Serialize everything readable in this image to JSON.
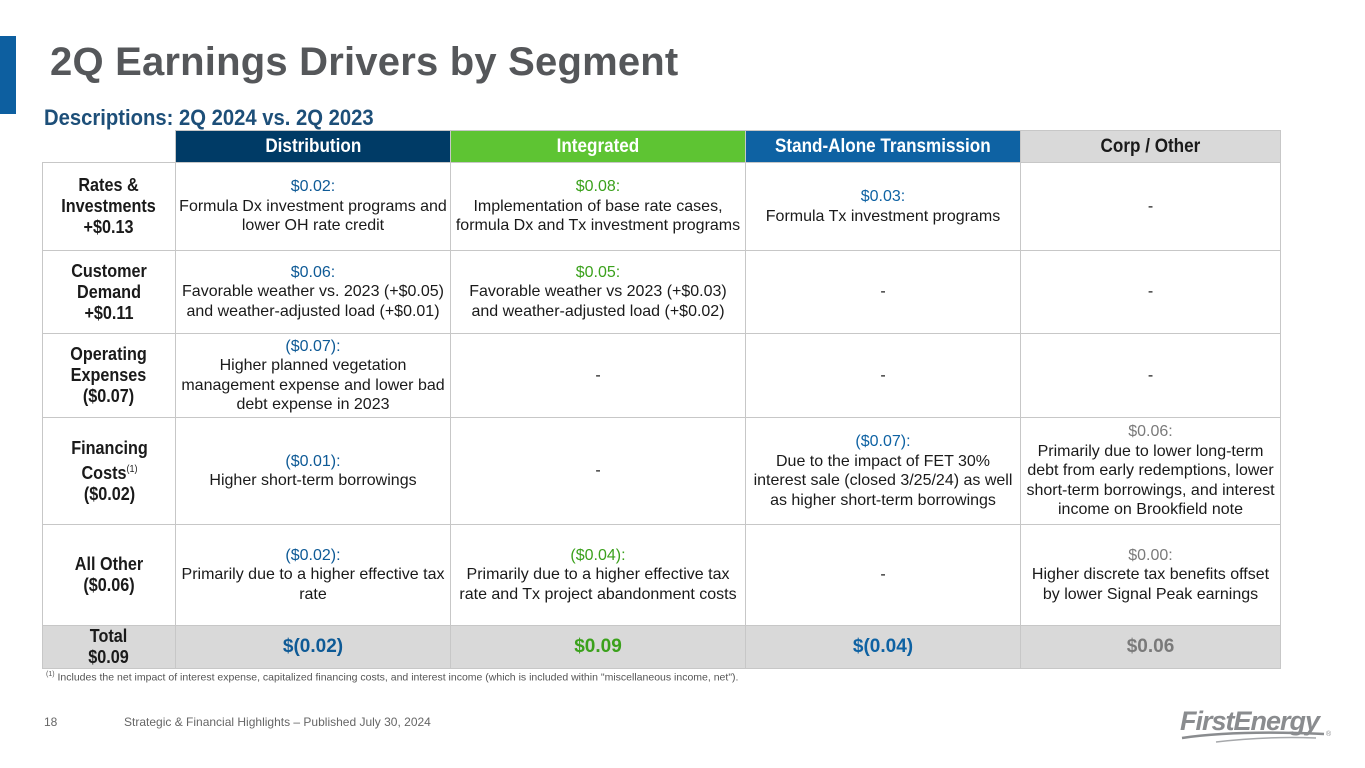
{
  "slide": {
    "title": "2Q Earnings Drivers by Segment",
    "subtitle": "Descriptions: 2Q 2024 vs. 2Q 2023",
    "page_number": "18",
    "footer": "Strategic & Financial Highlights – Published July 30, 2024",
    "footnote_marker": "(1)",
    "footnote": "Includes the net impact of interest expense, capitalized financing costs, and interest income (which is included within \"miscellaneous income, net\").",
    "logo_text": "FirstEnergy",
    "logo_mark": "®"
  },
  "colors": {
    "distribution": "#003b66",
    "integrated": "#5ec433",
    "transmission": "#0e62a3",
    "corp": "#d9d9d9",
    "title_gray": "#55575a",
    "subtitle_blue": "#1d4f79"
  },
  "table": {
    "headers": [
      "Distribution",
      "Integrated",
      "Stand-Alone Transmission",
      "Corp / Other"
    ],
    "rows": [
      {
        "label_lines": [
          "Rates &",
          "Investments",
          "+$0.13"
        ],
        "cells": [
          {
            "amount": "$0.02:",
            "text": "Formula Dx investment programs and lower OH rate credit"
          },
          {
            "amount": "$0.08:",
            "text": "Implementation of base rate cases, formula Dx and Tx investment programs"
          },
          {
            "amount": "$0.03:",
            "text": "Formula Tx investment programs"
          },
          {
            "amount": "",
            "text": "-"
          }
        ]
      },
      {
        "label_lines": [
          "Customer",
          "Demand",
          "+$0.11"
        ],
        "cells": [
          {
            "amount": "$0.06:",
            "text": "Favorable weather vs. 2023 (+$0.05) and weather-adjusted load (+$0.01)"
          },
          {
            "amount": "$0.05:",
            "text": "Favorable weather vs 2023 (+$0.03) and weather-adjusted load (+$0.02)"
          },
          {
            "amount": "",
            "text": "-"
          },
          {
            "amount": "",
            "text": "-"
          }
        ]
      },
      {
        "label_lines": [
          "Operating",
          "Expenses",
          "($0.07)"
        ],
        "cells": [
          {
            "amount": "($0.07):",
            "text": "Higher planned vegetation management expense and lower bad debt expense in 2023"
          },
          {
            "amount": "",
            "text": "-"
          },
          {
            "amount": "",
            "text": "-"
          },
          {
            "amount": "",
            "text": "-"
          }
        ]
      },
      {
        "label_lines": [
          "Financing",
          "Costs",
          "($0.02)"
        ],
        "label_footnote": "(1)",
        "cells": [
          {
            "amount": "($0.01):",
            "text": "Higher short-term borrowings"
          },
          {
            "amount": "",
            "text": "-"
          },
          {
            "amount": "($0.07):",
            "text": "Due to the impact of FET 30% interest sale (closed 3/25/24) as well as higher short-term borrowings"
          },
          {
            "amount": "$0.06:",
            "text": "Primarily due to lower long-term debt from early redemptions, lower short-term borrowings, and interest income on Brookfield note"
          }
        ]
      },
      {
        "label_lines": [
          "All Other",
          "($0.06)"
        ],
        "cells": [
          {
            "amount": "($0.02):",
            "text": "Primarily due to a higher effective tax rate"
          },
          {
            "amount": "($0.04):",
            "text": "Primarily due to a higher effective tax rate and Tx project abandonment costs"
          },
          {
            "amount": "",
            "text": "-"
          },
          {
            "amount": "$0.00:",
            "text": "Higher discrete tax benefits offset by lower Signal Peak earnings"
          }
        ]
      }
    ],
    "total": {
      "label_lines": [
        "Total",
        "$0.09"
      ],
      "values": [
        "$(0.02)",
        "$0.09",
        "$(0.04)",
        "$0.06"
      ]
    }
  }
}
